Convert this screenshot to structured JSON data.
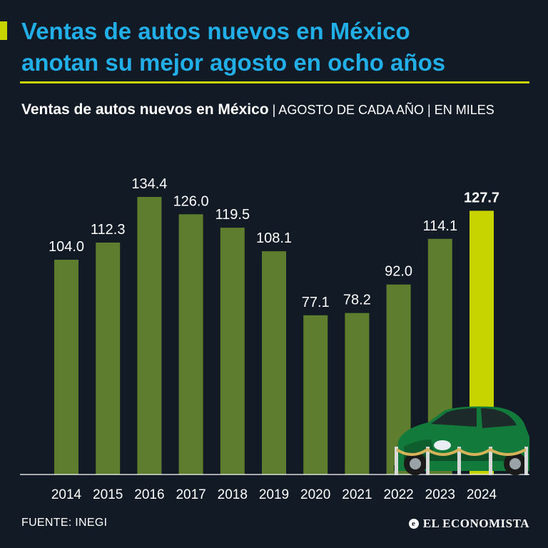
{
  "headline": {
    "line1": "Ventas de autos nuevos en México",
    "line2": "anotan su mejor agosto en ocho años"
  },
  "subtitle": {
    "strong": "Ventas de autos nuevos en México",
    "light": " | AGOSTO DE CADA AÑO | EN MILES"
  },
  "colors": {
    "bar": "#5e7d2e",
    "highlight": "#c8d400",
    "title": "#22aee6",
    "background": "#111a25"
  },
  "chart_data": {
    "type": "bar",
    "title": "Ventas de autos nuevos en México",
    "xlabel": "",
    "ylabel": "En miles",
    "categories": [
      "2014",
      "2015",
      "2016",
      "2017",
      "2018",
      "2019",
      "2020",
      "2021",
      "2022",
      "2023",
      "2024"
    ],
    "values": [
      104.0,
      112.3,
      134.4,
      126.0,
      119.5,
      108.1,
      77.1,
      78.2,
      92.0,
      114.1,
      127.7
    ],
    "labels": [
      "104.0",
      "112.3",
      "134.4",
      "126.0",
      "119.5",
      "108.1",
      "77.1",
      "78.2",
      "92.0",
      "114.1",
      "127.7"
    ],
    "highlight_category": "2024",
    "ylim": [
      0,
      134.4
    ],
    "grid": false
  },
  "footer": {
    "source": "FUENTE: INEGI",
    "brand": "EL ECONOMISTA",
    "brand_icon": "e-logo-icon"
  }
}
